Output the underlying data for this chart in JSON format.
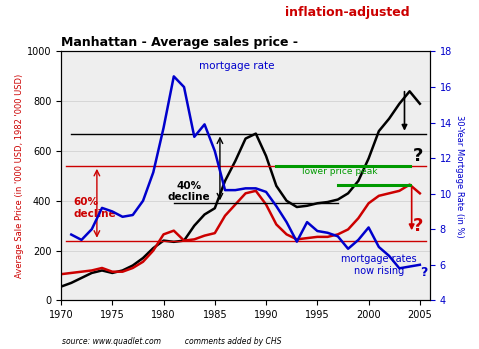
{
  "title_black": "Manhattan - Average sales price - ",
  "title_red": "inflation-adjusted",
  "ylabel_left": "Average Sale Price (in '000 USD, 1982 '000 USD)",
  "ylabel_right": "30-Year Mortgage Rate (in %)",
  "ylim_left": [
    0,
    1000
  ],
  "ylim_right": [
    4,
    18
  ],
  "xlim": [
    1970,
    2006
  ],
  "xticks": [
    1970,
    1975,
    1980,
    1985,
    1990,
    1995,
    2000,
    2005
  ],
  "yticks_left": [
    0,
    200,
    400,
    600,
    800,
    1000
  ],
  "yticks_right": [
    4,
    6,
    8,
    10,
    12,
    14,
    16,
    18
  ],
  "source_text": "source: www.quadlet.com          comments added by CHS",
  "sales_price_years": [
    1970,
    1971,
    1972,
    1973,
    1974,
    1975,
    1976,
    1977,
    1978,
    1979,
    1980,
    1981,
    1982,
    1983,
    1984,
    1985,
    1986,
    1987,
    1988,
    1989,
    1990,
    1991,
    1992,
    1993,
    1994,
    1995,
    1996,
    1997,
    1998,
    1999,
    2000,
    2001,
    2002,
    2003,
    2004,
    2005
  ],
  "sales_price_values": [
    55,
    70,
    90,
    110,
    120,
    110,
    120,
    140,
    170,
    210,
    240,
    235,
    240,
    300,
    345,
    370,
    480,
    560,
    650,
    670,
    580,
    460,
    400,
    375,
    380,
    390,
    395,
    405,
    430,
    480,
    570,
    680,
    730,
    790,
    840,
    790
  ],
  "infl_adj_years": [
    1970,
    1971,
    1972,
    1973,
    1974,
    1975,
    1976,
    1977,
    1978,
    1979,
    1980,
    1981,
    1982,
    1983,
    1984,
    1985,
    1986,
    1987,
    1988,
    1989,
    1990,
    1991,
    1992,
    1993,
    1994,
    1995,
    1996,
    1997,
    1998,
    1999,
    2000,
    2001,
    2002,
    2003,
    2004,
    2005
  ],
  "infl_adj_values": [
    105,
    110,
    115,
    120,
    130,
    115,
    115,
    130,
    155,
    200,
    265,
    280,
    240,
    245,
    260,
    270,
    340,
    385,
    430,
    440,
    385,
    305,
    265,
    245,
    250,
    255,
    255,
    265,
    285,
    330,
    390,
    420,
    430,
    440,
    465,
    430
  ],
  "mortgage_years": [
    1971,
    1972,
    1973,
    1974,
    1975,
    1976,
    1977,
    1978,
    1979,
    1980,
    1981,
    1982,
    1983,
    1984,
    1985,
    1986,
    1987,
    1988,
    1989,
    1990,
    1991,
    1992,
    1993,
    1994,
    1995,
    1996,
    1997,
    1998,
    1999,
    2000,
    2001,
    2002,
    2003,
    2004,
    2005
  ],
  "mortgage_values": [
    7.7,
    7.4,
    8.0,
    9.2,
    9.0,
    8.7,
    8.8,
    9.6,
    11.2,
    13.7,
    16.6,
    16.0,
    13.2,
    13.9,
    12.4,
    10.2,
    10.2,
    10.3,
    10.3,
    10.1,
    9.3,
    8.4,
    7.3,
    8.4,
    7.9,
    7.8,
    7.6,
    6.9,
    7.4,
    8.1,
    7.0,
    6.5,
    5.8,
    5.9,
    6.0
  ],
  "hline_black_y": 670,
  "hline_black_bottom_y": 390,
  "hline_red_upper_y": 540,
  "hline_red_lower_y": 240,
  "hline_green_upper_y": 540,
  "hline_green_lower_y": 465,
  "hline_green_upper_x_start": 1991,
  "hline_green_upper_x_end": 2004,
  "hline_green_lower_x_start": 1997,
  "hline_green_lower_x_end": 2004,
  "bg_color": "#ffffff",
  "sales_color": "#000000",
  "infl_color": "#cc0000",
  "mortgage_color": "#0000cc"
}
